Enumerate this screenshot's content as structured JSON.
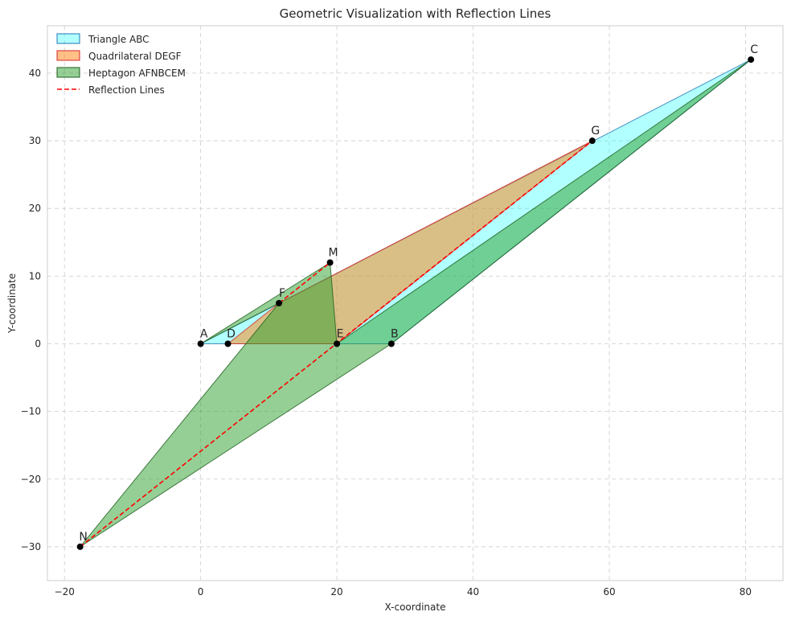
{
  "chart_data": {
    "type": "polygon",
    "title": "Geometric Visualization with Reflection Lines",
    "xlabel": "X-coordinate",
    "ylabel": "Y-coordinate",
    "xlim": [
      -22.5,
      85.5
    ],
    "ylim": [
      -35,
      47
    ],
    "xticks": [
      -20,
      0,
      20,
      40,
      60,
      80
    ],
    "yticks": [
      -30,
      -20,
      -10,
      0,
      10,
      20,
      30,
      40
    ],
    "grid": true,
    "legend_position": "top-left",
    "points": [
      {
        "name": "A",
        "x": 0,
        "y": 0
      },
      {
        "name": "B",
        "x": 28,
        "y": 0
      },
      {
        "name": "C",
        "x": 80.8,
        "y": 42
      },
      {
        "name": "D",
        "x": 4,
        "y": 0
      },
      {
        "name": "E",
        "x": 20,
        "y": 0
      },
      {
        "name": "F",
        "x": 11.5,
        "y": 6
      },
      {
        "name": "G",
        "x": 57.5,
        "y": 30
      },
      {
        "name": "M",
        "x": 19,
        "y": 12
      },
      {
        "name": "N",
        "x": -17.7,
        "y": -30
      }
    ],
    "polygons": [
      {
        "name": "Triangle ABC",
        "vertices": [
          "A",
          "B",
          "C"
        ],
        "fill": "#00ffff",
        "opacity": 0.3,
        "edge": "#1f77b4"
      },
      {
        "name": "Quadrilateral DEGF",
        "vertices": [
          "D",
          "E",
          "G",
          "F"
        ],
        "fill": "#ff7f0e",
        "opacity": 0.5,
        "edge": "#d62728"
      },
      {
        "name": "Heptagon AFNBCEM",
        "vertices": [
          "A",
          "F",
          "N",
          "B",
          "C",
          "E",
          "M"
        ],
        "fill": "#2ca02c",
        "opacity": 0.5,
        "edge": "#1d5e1d"
      }
    ],
    "reflection_lines": {
      "name": "Reflection Lines",
      "color": "#ff0000",
      "segments": [
        [
          "F",
          "M"
        ],
        [
          "N",
          "G"
        ]
      ]
    }
  }
}
